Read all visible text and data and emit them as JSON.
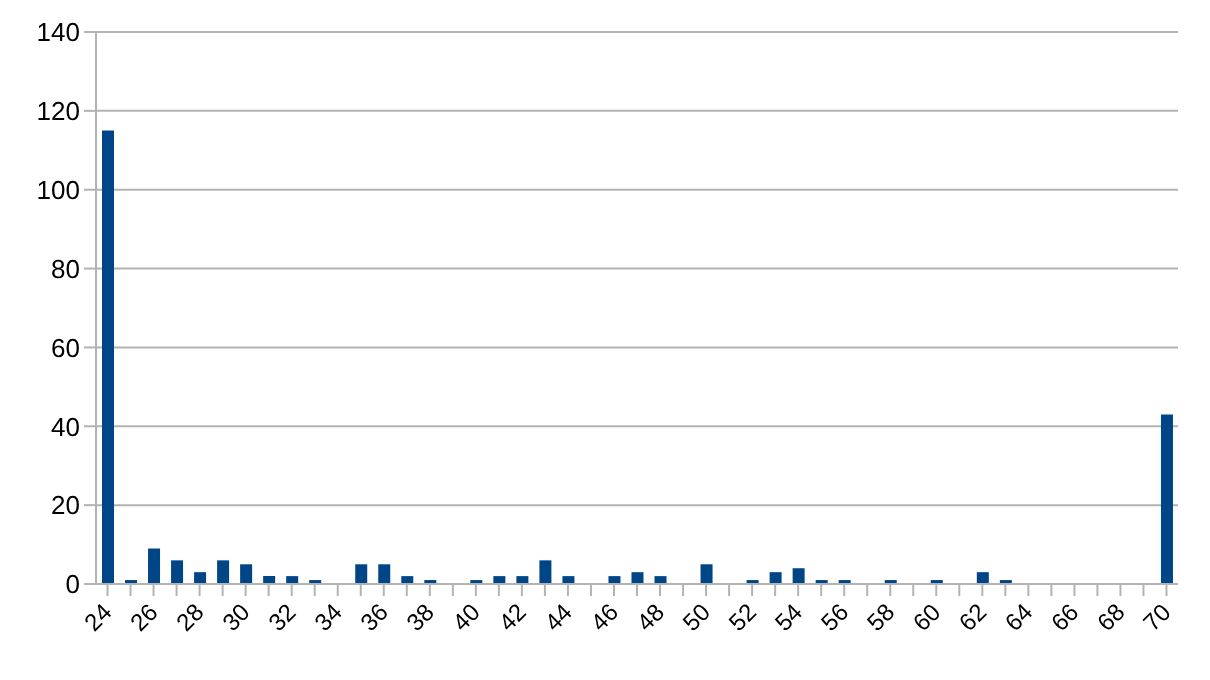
{
  "chart_data": {
    "type": "bar",
    "categories": [
      "24",
      null,
      "26",
      null,
      "28",
      null,
      "30",
      null,
      "32",
      null,
      "34",
      null,
      "36",
      null,
      "38",
      null,
      "40",
      null,
      "42",
      null,
      "44",
      null,
      "46",
      null,
      "48",
      null,
      "50",
      null,
      "52",
      null,
      "54",
      null,
      "56",
      null,
      "58",
      null,
      "60",
      null,
      "62",
      null,
      "64",
      null,
      "66",
      null,
      "68",
      null,
      "70"
    ],
    "values": [
      115,
      1,
      9,
      6,
      3,
      6,
      5,
      2,
      2,
      1,
      0,
      5,
      5,
      2,
      1,
      0,
      1,
      2,
      2,
      6,
      2,
      0,
      2,
      3,
      2,
      0,
      5,
      0,
      1,
      3,
      4,
      1,
      1,
      0,
      1,
      0,
      1,
      0,
      3,
      1,
      0,
      0,
      0,
      0,
      0,
      0,
      43
    ],
    "color": "#004586",
    "ylim": [
      0,
      140
    ],
    "yticks": [
      0,
      20,
      40,
      60,
      80,
      100,
      120,
      140
    ],
    "grid": "y"
  }
}
